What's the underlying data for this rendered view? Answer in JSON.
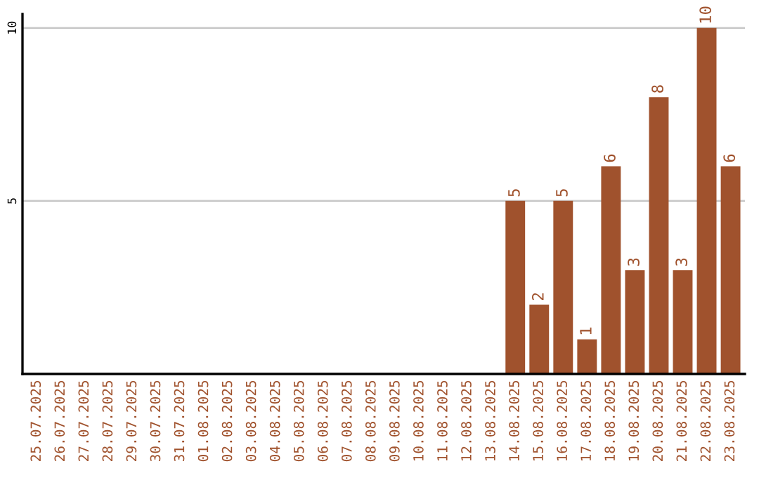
{
  "chart_data": {
    "type": "bar",
    "categories": [
      "25.07.2025",
      "26.07.2025",
      "27.07.2025",
      "28.07.2025",
      "29.07.2025",
      "30.07.2025",
      "31.07.2025",
      "01.08.2025",
      "02.08.2025",
      "03.08.2025",
      "04.08.2025",
      "05.08.2025",
      "06.08.2025",
      "07.08.2025",
      "08.08.2025",
      "09.08.2025",
      "10.08.2025",
      "11.08.2025",
      "12.08.2025",
      "13.08.2025",
      "14.08.2025",
      "15.08.2025",
      "16.08.2025",
      "17.08.2025",
      "18.08.2025",
      "19.08.2025",
      "20.08.2025",
      "21.08.2025",
      "22.08.2025",
      "23.08.2025"
    ],
    "values": [
      0,
      0,
      0,
      0,
      0,
      0,
      0,
      0,
      0,
      0,
      0,
      0,
      0,
      0,
      0,
      0,
      0,
      0,
      0,
      0,
      5,
      2,
      5,
      1,
      6,
      3,
      8,
      3,
      10,
      6
    ],
    "value_labels": [
      null,
      null,
      null,
      null,
      null,
      null,
      null,
      null,
      null,
      null,
      null,
      null,
      null,
      null,
      null,
      null,
      null,
      null,
      null,
      null,
      "5",
      "2",
      "5",
      "1",
      "6",
      "3",
      "8",
      "3",
      "10",
      "6"
    ],
    "color": "#a0522d",
    "ylim": [
      0,
      10.4
    ],
    "yticks": [
      5,
      10
    ],
    "grid": "y"
  }
}
